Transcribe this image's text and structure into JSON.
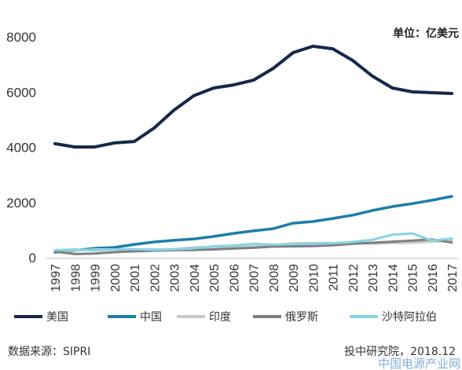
{
  "chart_data": {
    "type": "line",
    "x": [
      1997,
      1998,
      1999,
      2000,
      2001,
      2002,
      2003,
      2004,
      2005,
      2006,
      2007,
      2008,
      2009,
      2010,
      2011,
      2012,
      2013,
      2014,
      2015,
      2016,
      2017
    ],
    "series": [
      {
        "name": "美国",
        "color": "#13294b",
        "values": [
          4130,
          4010,
          4010,
          4160,
          4210,
          4700,
          5350,
          5870,
          6150,
          6260,
          6430,
          6860,
          7430,
          7660,
          7570,
          7150,
          6580,
          6150,
          6010,
          5980,
          5950
        ]
      },
      {
        "name": "中国",
        "color": "#1d7ea8",
        "values": [
          200,
          260,
          340,
          370,
          480,
          570,
          630,
          680,
          770,
          880,
          970,
          1050,
          1250,
          1310,
          1420,
          1540,
          1710,
          1850,
          1960,
          2080,
          2220
        ]
      },
      {
        "name": "印度",
        "color": "#c9c9c9",
        "values": [
          240,
          260,
          300,
          300,
          300,
          300,
          310,
          370,
          390,
          390,
          400,
          450,
          520,
          530,
          530,
          520,
          510,
          530,
          540,
          580,
          630
        ]
      },
      {
        "name": "俄罗斯",
        "color": "#7f7f7f",
        "values": [
          220,
          130,
          150,
          200,
          230,
          250,
          270,
          280,
          300,
          330,
          360,
          400,
          410,
          420,
          450,
          500,
          540,
          580,
          620,
          660,
          550
        ]
      },
      {
        "name": "沙特阿拉伯",
        "color": "#86d4e4",
        "values": [
          270,
          300,
          260,
          300,
          310,
          280,
          300,
          340,
          410,
          440,
          500,
          470,
          490,
          500,
          520,
          570,
          650,
          830,
          880,
          620,
          690
        ]
      }
    ],
    "ylim": [
      0,
      8000
    ],
    "yticks": [
      0,
      2000,
      4000,
      6000,
      8000
    ],
    "unit_label": "单位：亿美元",
    "legend_position": "bottom",
    "grid": false
  },
  "footer": {
    "source": "数据来源：SIPRI",
    "credit": "投中研究院，2018.12",
    "watermark": "中国电源产业网"
  }
}
